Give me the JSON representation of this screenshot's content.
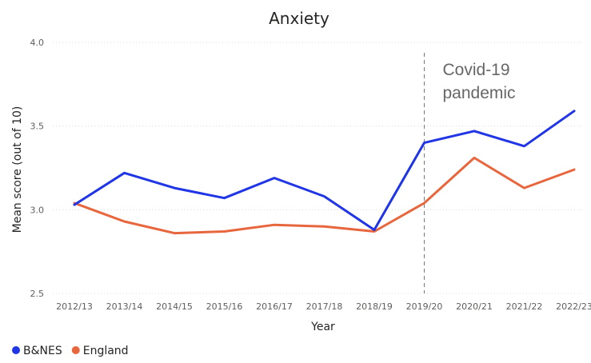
{
  "chart_data": {
    "type": "line",
    "title": "Anxiety",
    "xlabel": "Year",
    "ylabel": "Mean score (out of 10)",
    "categories": [
      "2012/13",
      "2013/14",
      "2014/15",
      "2015/16",
      "2016/17",
      "2017/18",
      "2018/19",
      "2019/20",
      "2020/21",
      "2021/22",
      "2022/23"
    ],
    "ylim": [
      2.5,
      4.0
    ],
    "yticks": [
      "2.5",
      "3.0",
      "3.5",
      "4.0"
    ],
    "series": [
      {
        "name": "B&NES",
        "color": "#1f35e6",
        "values": [
          3.03,
          3.22,
          3.13,
          3.07,
          3.19,
          3.08,
          2.88,
          3.4,
          3.47,
          3.38,
          3.59
        ]
      },
      {
        "name": "England",
        "color": "#e8663d",
        "values": [
          3.04,
          2.93,
          2.86,
          2.87,
          2.91,
          2.9,
          2.87,
          3.04,
          3.31,
          3.13,
          3.24
        ]
      }
    ],
    "annotation": {
      "line1": "Covid-19",
      "line2": "pandemic",
      "at_category": "2019/20"
    },
    "grid": true,
    "legend_position": "bottom-left"
  }
}
